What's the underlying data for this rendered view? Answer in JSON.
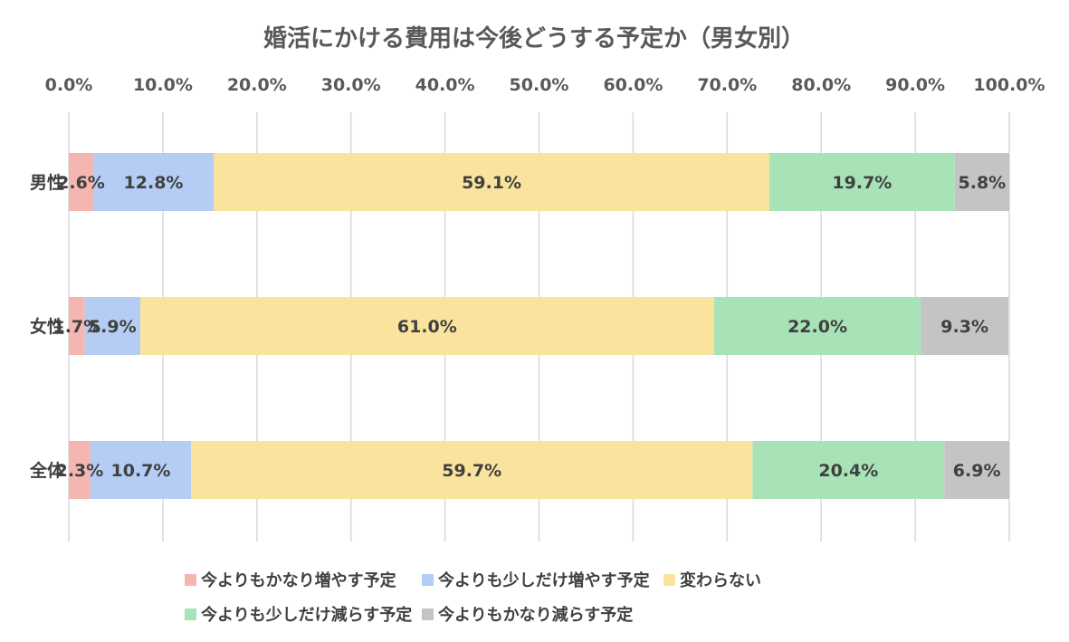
{
  "chart_data": {
    "type": "bar",
    "orientation": "horizontal",
    "stacked": true,
    "title": "婚活にかける費用は今後どうする予定か（男女別）",
    "xlabel": "",
    "ylabel": "",
    "xlim": [
      0,
      100
    ],
    "x_ticks": [
      "0.0%",
      "10.0%",
      "20.0%",
      "30.0%",
      "40.0%",
      "50.0%",
      "60.0%",
      "70.0%",
      "80.0%",
      "90.0%",
      "100.0%"
    ],
    "categories": [
      "男性",
      "女性",
      "全体"
    ],
    "series": [
      {
        "name": "今よりもかなり増やす予定",
        "color": "#f4b6b1",
        "values": [
          2.6,
          1.7,
          2.3
        ],
        "labels": [
          "2.6%",
          "1.7%",
          "2.3%"
        ]
      },
      {
        "name": "今よりも少しだけ増やす予定",
        "color": "#b5cdf5",
        "values": [
          12.8,
          5.9,
          10.7
        ],
        "labels": [
          "12.8%",
          "5.9%",
          "10.7%"
        ]
      },
      {
        "name": "変わらない",
        "color": "#fae49d",
        "values": [
          59.1,
          61.0,
          59.7
        ],
        "labels": [
          "59.1%",
          "61.0%",
          "59.7%"
        ]
      },
      {
        "name": "今よりも少しだけ減らす予定",
        "color": "#a7e3b7",
        "values": [
          19.7,
          22.0,
          20.4
        ],
        "labels": [
          "19.7%",
          "22.0%",
          "20.4%"
        ]
      },
      {
        "name": "今よりもかなり減らす予定",
        "color": "#c4c4c4",
        "values": [
          5.8,
          9.3,
          6.9
        ],
        "labels": [
          "5.8%",
          "9.3%",
          "6.9%"
        ]
      }
    ],
    "grid": true,
    "axis_position": "top",
    "legend_position": "bottom"
  }
}
